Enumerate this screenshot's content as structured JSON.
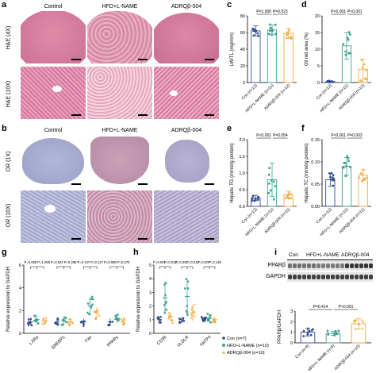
{
  "panel_labels": {
    "a": "a",
    "b": "b",
    "c": "c",
    "d": "d",
    "e": "e",
    "f": "f",
    "g": "g",
    "h": "h",
    "i": "i"
  },
  "histology": {
    "columns": [
      "Control",
      "HFD+L-NAME",
      "ADRQβ-004"
    ],
    "rows_a": [
      "H&E (4X)",
      "H&E (10X)"
    ],
    "rows_b": [
      "OR (1X)",
      "OR (10X)"
    ]
  },
  "colors": {
    "con": "#2f4f8f",
    "hfd": "#3aa38f",
    "adr": "#f2a93b",
    "he_bg": "#d9779f",
    "or_bg": "#9aa0c8"
  },
  "chart_data": [
    {
      "id": "c",
      "type": "bar",
      "ylabel": "LW/TL (mg/mm)",
      "ylim": [
        0,
        80
      ],
      "yticks": [
        0,
        20,
        40,
        60,
        80
      ],
      "categories": [
        "Con (n=12)",
        "HFD+L-NAME (n=11)",
        "ADRQβ-004 (n=12)"
      ],
      "values": [
        62,
        63,
        59
      ],
      "errors": [
        6,
        6,
        6
      ],
      "pvalues": [
        {
          "text": "P=1.000",
          "from": 0,
          "to": 1
        },
        {
          "text": "P=0.023",
          "from": 1,
          "to": 2
        }
      ]
    },
    {
      "id": "d",
      "type": "bar",
      "ylabel": "Oil red area (%)",
      "ylim": [
        0,
        20
      ],
      "yticks": [
        0,
        5,
        10,
        15,
        20
      ],
      "categories": [
        "Con (n=12)",
        "HFD+L-NAME (n=11)",
        "ADRQβ-004 (n=12)"
      ],
      "values": [
        0.3,
        11,
        4
      ],
      "errors": [
        0.2,
        4,
        3
      ],
      "pvalues": [
        {
          "text": "P<0.001",
          "from": 0,
          "to": 1
        },
        {
          "text": "P<0.001",
          "from": 1,
          "to": 2
        }
      ]
    },
    {
      "id": "e",
      "type": "bar",
      "ylabel": "Hepatic TG (mmol/g protein)",
      "ylim": [
        0,
        2.0
      ],
      "yticks": [
        0.0,
        0.5,
        1.0,
        1.5,
        2.0
      ],
      "categories": [
        "Con (n=12)",
        "HFD+L-NAME (n=11)",
        "ADRQβ-004 (n=11)"
      ],
      "values": [
        0.25,
        0.8,
        0.35
      ],
      "errors": [
        0.08,
        0.5,
        0.1
      ],
      "pvalues": [
        {
          "text": "P<0.001",
          "from": 0,
          "to": 1
        },
        {
          "text": "P=0.054",
          "from": 1,
          "to": 2
        }
      ]
    },
    {
      "id": "f",
      "type": "bar",
      "ylabel": "Hepatic TC (mmol/g protein)",
      "ylim": [
        0.0,
        0.15
      ],
      "yticks": [
        0.0,
        0.05,
        0.1,
        0.15
      ],
      "categories": [
        "Con (n=12)",
        "HFD+L-NAME (n=11)",
        "ADRQβ-004 (n=11)"
      ],
      "values": [
        0.06,
        0.09,
        0.07
      ],
      "errors": [
        0.015,
        0.02,
        0.012
      ],
      "pvalues": [
        {
          "text": "P<0.001",
          "from": 0,
          "to": 1
        },
        {
          "text": "P=0.003",
          "from": 1,
          "to": 2
        }
      ]
    },
    {
      "id": "g",
      "type": "bar",
      "ylabel": "Relative expression to GAPDH",
      "ylim": [
        0,
        6
      ],
      "yticks": [
        0,
        2,
        4,
        6
      ],
      "categories": [
        "LXRα",
        "SREBP1",
        "Fas",
        "PPARγ"
      ],
      "series": [
        {
          "values": [
            1.0,
            1.0,
            1.0,
            1.0
          ],
          "errors": [
            0.3,
            0.3,
            0.3,
            0.3
          ]
        },
        {
          "values": [
            1.2,
            1.1,
            2.4,
            1.3
          ],
          "errors": [
            0.4,
            0.4,
            0.8,
            0.4
          ]
        },
        {
          "values": [
            1.1,
            1.0,
            1.8,
            1.1
          ],
          "errors": [
            0.3,
            0.3,
            0.5,
            0.3
          ]
        }
      ],
      "pvalues": [
        "P=0.069",
        "P=1.000",
        "P=0.822",
        "P=0.298",
        "P=0.127",
        "P=0.127",
        "P=0.086",
        "P=0.270"
      ]
    },
    {
      "id": "h",
      "type": "bar",
      "ylabel": "Relative expression to GAPDH",
      "ylim": [
        0,
        5
      ],
      "yticks": [
        0,
        1,
        2,
        3,
        4,
        5
      ],
      "categories": [
        "CD36",
        "VLDLR",
        "FATP4"
      ],
      "series": [
        {
          "values": [
            1.0,
            1.0,
            1.0
          ],
          "errors": [
            0.2,
            0.2,
            0.2
          ]
        },
        {
          "values": [
            2.6,
            2.7,
            1.1
          ],
          "errors": [
            1.2,
            1.3,
            0.3
          ]
        },
        {
          "values": [
            1.2,
            1.5,
            1.0
          ],
          "errors": [
            0.4,
            0.6,
            0.2
          ]
        }
      ],
      "pvalues": [
        "P=0.001",
        "P=0.010",
        "P=0.001",
        "P=0.012",
        "P=0.007",
        "P=0.149"
      ],
      "legend": [
        "Con (n=7)",
        "HFD+L-NAME (n=10)",
        "ADRQβ-004 (n=10)"
      ]
    },
    {
      "id": "i",
      "type": "bar",
      "ylabel": "PPARβ/GAPDH",
      "ylim": [
        0,
        3
      ],
      "yticks": [
        0,
        1,
        2,
        3
      ],
      "categories": [
        "Con (n=8)",
        "HFD+L-NAME (n=9)",
        "ADRQβ-004 (n=10)"
      ],
      "values": [
        1.0,
        0.9,
        1.8
      ],
      "errors": [
        0.35,
        0.2,
        0.5
      ],
      "pvalues": [
        {
          "text": "P=0.414",
          "from": 0,
          "to": 1
        },
        {
          "text": "P<0.001",
          "from": 1,
          "to": 2
        }
      ]
    }
  ],
  "blot": {
    "groups": [
      "Con",
      "HFD+L-NAME",
      "ADRQβ-004"
    ],
    "proteins": [
      "PPARβ",
      "GAPDH"
    ]
  }
}
